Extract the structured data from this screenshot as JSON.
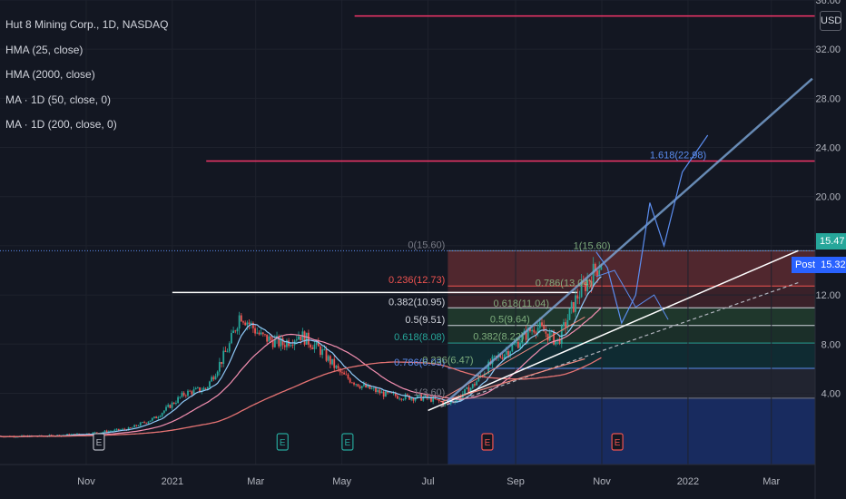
{
  "legend": {
    "title": "Hut 8 Mining Corp., 1D, NASDAQ",
    "studies": [
      "HMA (25, close)",
      "HMA (2000, close)",
      "MA · 1D (50, close, 0)",
      "MA · 1D (200, close, 0)"
    ]
  },
  "currency": "USD",
  "price_tags": [
    {
      "label": "",
      "value": "15.47",
      "price": 15.47,
      "color": "#26a69a"
    },
    {
      "label": "Post",
      "value": "15.32",
      "price": 15.32,
      "color": "#2962ff"
    }
  ],
  "earnings_marker": "E",
  "colors": {
    "background": "#131722",
    "up": "#26a69a",
    "down": "#ef5350",
    "hline": "#f23669",
    "fib_label": "#5b8def"
  },
  "chart_data": {
    "type": "line",
    "title": "Hut 8 Mining Corp., 1D, NASDAQ",
    "x_tick_labels": [
      "Nov",
      "2021",
      "Mar",
      "May",
      "Jul",
      "Sep",
      "Nov",
      "2022",
      "Mar"
    ],
    "x_ticks": [
      "2020-11",
      "2021-01",
      "2021-03",
      "2021-05",
      "2021-07",
      "2021-09",
      "2021-11",
      "2022-01",
      "2022-03"
    ],
    "x_range": [
      "2020-09-01",
      "2022-04-01"
    ],
    "y_ticks": [
      "4.00",
      "8.00",
      "12.00",
      "16.00",
      "20.00",
      "24.00",
      "28.00",
      "32.00",
      "36.00"
    ],
    "ylim": [
      -1.8,
      36
    ],
    "series": [
      {
        "x": [
          "2020-09-01",
          "2020-10-01",
          "2020-11-01",
          "2020-12-01",
          "2020-12-20",
          "2021-01-10",
          "2021-01-25",
          "2021-02-10",
          "2021-02-18",
          "2021-03-05",
          "2021-03-20",
          "2021-04-01",
          "2021-04-15",
          "2021-05-01",
          "2021-05-15",
          "2021-06-01",
          "2021-06-15",
          "2021-07-01",
          "2021-07-15",
          "2021-08-01",
          "2021-08-15",
          "2021-09-01",
          "2021-09-15",
          "2021-10-01",
          "2021-10-15",
          "2021-11-01"
        ],
        "values": [
          0.5,
          0.5,
          0.7,
          1.1,
          2.0,
          4.0,
          4.4,
          7.8,
          10.5,
          8.6,
          8.0,
          8.8,
          7.6,
          5.5,
          4.6,
          3.9,
          3.7,
          3.6,
          3.1,
          4.5,
          6.5,
          8.0,
          9.5,
          8.2,
          12.0,
          14.8
        ]
      }
    ],
    "horizontal_lines": [
      34.7,
      22.9,
      12.2
    ],
    "fibonacci": [
      {
        "label": "0(15.60)",
        "price": 15.6
      },
      {
        "label": "0.236(12.73)",
        "price": 12.73
      },
      {
        "label": "0.382(10.95)",
        "price": 10.95
      },
      {
        "label": "0.5(9.51)",
        "price": 9.51
      },
      {
        "label": "0.618(8.08)",
        "price": 8.08
      },
      {
        "label": "0.786(6.03)",
        "price": 6.03
      },
      {
        "label": "1(3.60)",
        "price": 3.6
      }
    ],
    "fib_extension_labels": [
      {
        "label": "1.618(22.98)",
        "x": "2021-12-25",
        "price": 22.98
      },
      {
        "label": "1(15.60)",
        "x": "2021-10-25",
        "price": 15.6
      },
      {
        "label": "0.786(13.04)",
        "x": "2021-10-05",
        "price": 12.55
      },
      {
        "label": "0.618(11.04)",
        "x": "2021-09-05",
        "price": 10.9
      },
      {
        "label": "0.5(9.64)",
        "x": "2021-08-28",
        "price": 9.6
      },
      {
        "label": "0.382(8.22)",
        "x": "2021-08-20",
        "price": 8.2
      },
      {
        "label": "0.236(6.47)",
        "x": "2021-07-15",
        "price": 6.3
      }
    ],
    "earnings": [
      "2020-11-10",
      "2021-03-20",
      "2021-05-05",
      "2021-08-12",
      "2021-11-12"
    ]
  }
}
